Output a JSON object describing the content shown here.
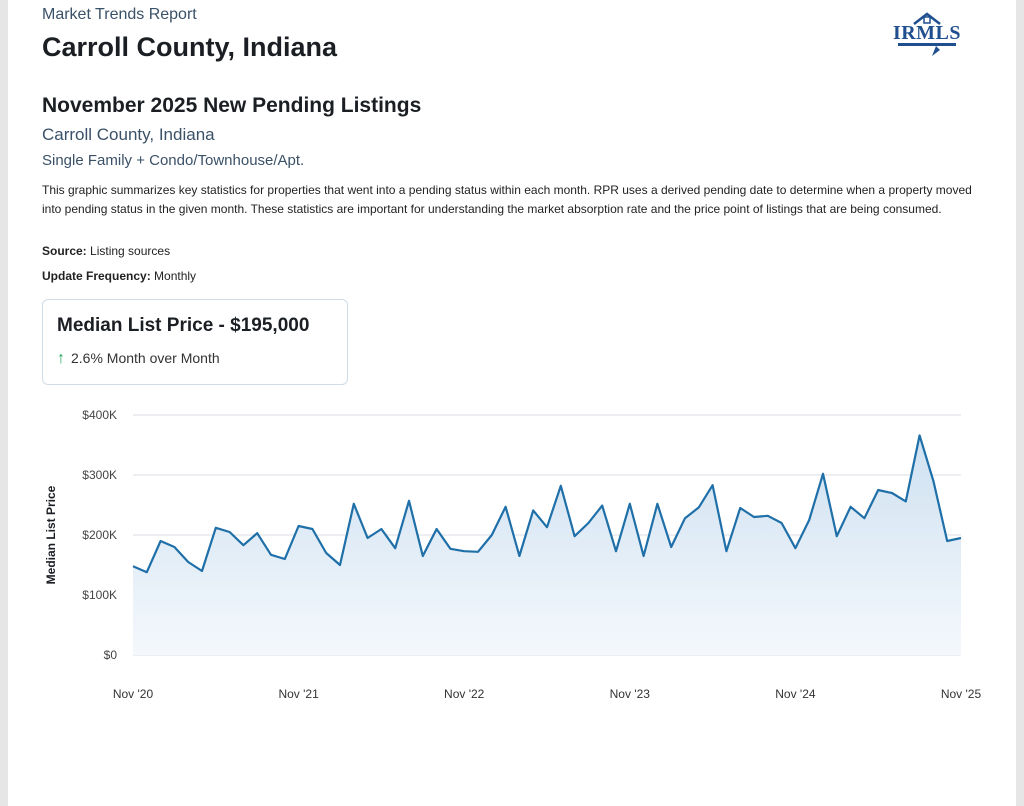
{
  "header": {
    "report_label": "Market Trends Report",
    "county_title": "Carroll County, Indiana",
    "logo_text": "IRMLS"
  },
  "section": {
    "title": "November 2025 New Pending Listings",
    "subtitle": "Carroll County, Indiana",
    "property_types": "Single Family + Condo/Townhouse/Apt.",
    "description": "This graphic summarizes key statistics for properties that went into a pending status within each month. RPR uses a derived pending date to determine when a property moved into pending status in the given month. These statistics are important for understanding the market absorption rate and the price point of listings that are being consumed.",
    "source_label": "Source:",
    "source_value": "Listing sources",
    "frequency_label": "Update Frequency:",
    "frequency_value": "Monthly"
  },
  "stat_card": {
    "title": "Median List Price - $195,000",
    "arrow": "↑",
    "change": "2.6% Month over Month"
  },
  "colors": {
    "line": "#1f6fa8",
    "area_top": "#cfe1f1",
    "area_bottom": "#f4f8fc",
    "grid": "#d9dee4"
  },
  "chart_data": {
    "type": "area",
    "title": "",
    "xlabel": "",
    "ylabel": "Median List Price",
    "ylim": [
      0,
      400000
    ],
    "y_ticks": [
      0,
      100000,
      200000,
      300000,
      400000
    ],
    "y_tick_labels": [
      "$0",
      "$100K",
      "$200K",
      "$300K",
      "$400K"
    ],
    "x_tick_labels": [
      "Nov '20",
      "Nov '21",
      "Nov '22",
      "Nov '23",
      "Nov '24",
      "Nov '25"
    ],
    "x_tick_index": [
      0,
      12,
      24,
      36,
      48,
      60
    ],
    "grid": true,
    "legend": "none",
    "series": [
      {
        "values": [
          148000,
          138000,
          190000,
          180000,
          155000,
          140000,
          212000,
          205000,
          183000,
          203000,
          167000,
          160000,
          215000,
          210000,
          170000,
          150000,
          252000,
          195000,
          210000,
          178000,
          257000,
          165000,
          210000,
          177000,
          173000,
          172000,
          200000,
          247000,
          165000,
          241000,
          213000,
          282000,
          198000,
          220000,
          249000,
          173000,
          252000,
          165000,
          252000,
          180000,
          228000,
          246000,
          283000,
          173000,
          245000,
          230000,
          232000,
          220000,
          178000,
          225000,
          302000,
          198000,
          247000,
          228000,
          275000,
          270000,
          256000,
          366000,
          290000,
          190000,
          195000
        ]
      }
    ]
  }
}
